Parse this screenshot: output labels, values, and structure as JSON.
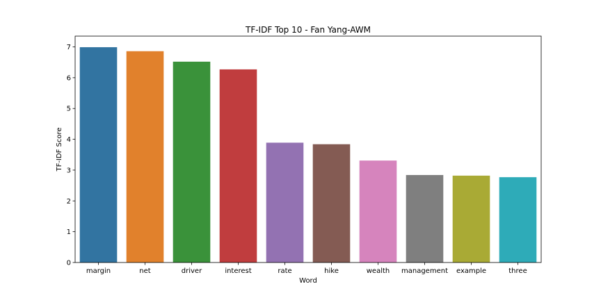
{
  "chart_data": {
    "type": "bar",
    "title": "TF-IDF Top 10 - Fan Yang-AWM",
    "xlabel": "Word",
    "ylabel": "TF-IDF Score",
    "categories": [
      "margin",
      "net",
      "driver",
      "interest",
      "rate",
      "hike",
      "wealth",
      "management",
      "example",
      "three"
    ],
    "values": [
      6.99,
      6.86,
      6.52,
      6.27,
      3.89,
      3.84,
      3.31,
      2.84,
      2.82,
      2.77
    ],
    "colors": [
      "#3274a1",
      "#e1812c",
      "#3a923a",
      "#c03d3e",
      "#9372b2",
      "#845b53",
      "#d684bd",
      "#7f7f7f",
      "#a9aa35",
      "#2eabb8"
    ],
    "ylim": [
      0,
      7.35
    ],
    "yticks": [
      0,
      1,
      2,
      3,
      4,
      5,
      6,
      7
    ],
    "grid": false,
    "legend": "none"
  }
}
